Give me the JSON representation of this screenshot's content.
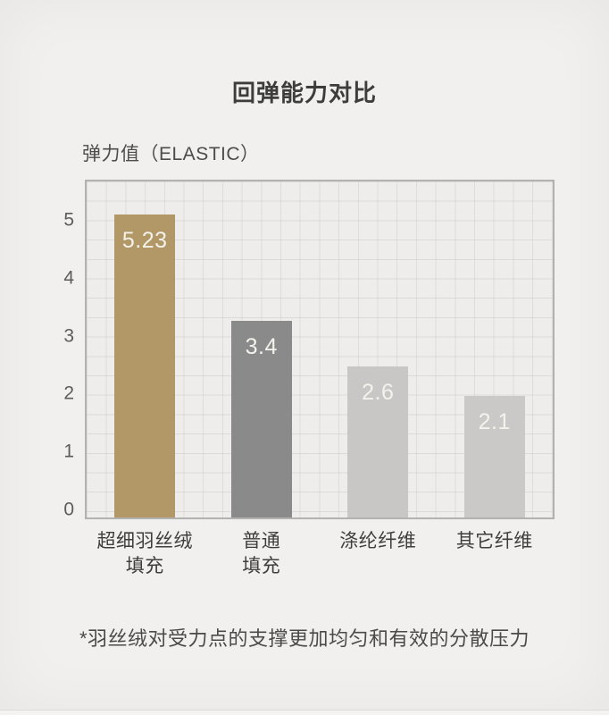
{
  "title": "回弹能力对比",
  "y_axis_label": "弹力值（ELASTIC）",
  "footnote": "*羽丝绒对受力点的支撑更加均匀和有效的分散压力",
  "colors": {
    "page_background": "#f1f0ee",
    "plot_background": "#eeedeb",
    "plot_border": "#b3b2b0",
    "accent_gold": "#b29866",
    "bar_dark_gray": "#8a8a8a",
    "bar_light_gray": "#c8c7c5",
    "value_text": "#f4f2ec"
  },
  "chart_data": {
    "type": "bar",
    "title": "回弹能力对比",
    "xlabel": "",
    "ylabel": "弹力值（ELASTIC）",
    "categories": [
      "超细羽丝绒填充",
      "普通填充",
      "涤纶纤维",
      "其它纤维"
    ],
    "category_lines": [
      [
        "超细羽丝绒",
        "填充"
      ],
      [
        "普通",
        "填充"
      ],
      [
        "涤纶纤维"
      ],
      [
        "其它纤维"
      ]
    ],
    "values": [
      5.23,
      3.4,
      2.6,
      2.1
    ],
    "value_labels": [
      "5.23",
      "3.4",
      "2.6",
      "2.1"
    ],
    "bar_colors": [
      "#b29866",
      "#8a8a8a",
      "#c8c7c5",
      "#cac9c7"
    ],
    "yticks": [
      0,
      1,
      2,
      3,
      4,
      5
    ],
    "ylim": [
      0,
      5.8
    ],
    "grid": true,
    "legend": false
  }
}
